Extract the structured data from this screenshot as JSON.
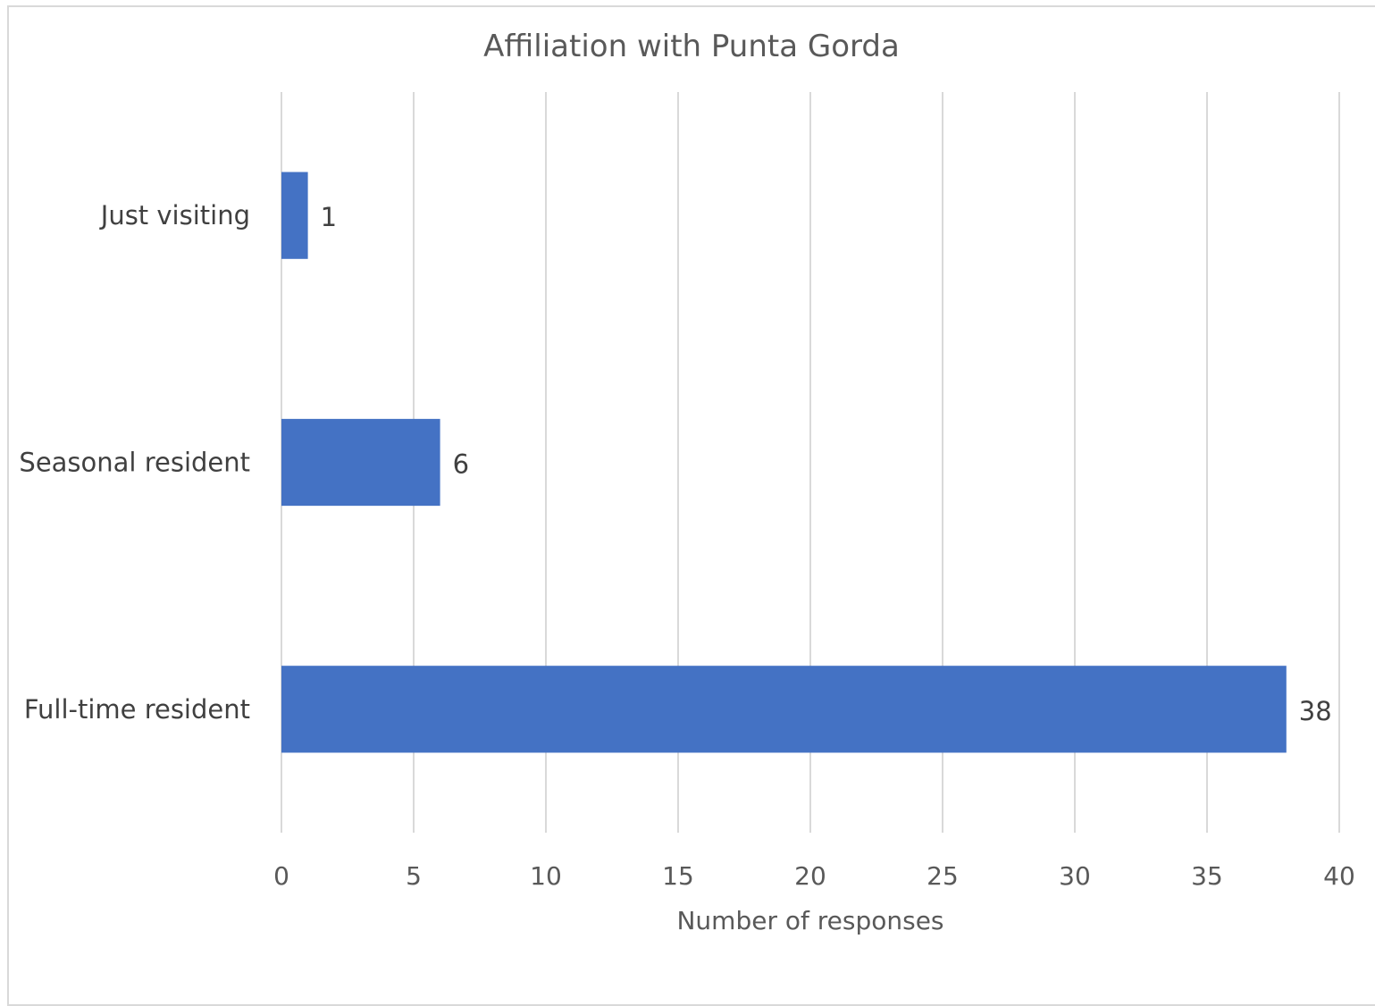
{
  "chart_data": {
    "type": "bar",
    "orientation": "horizontal",
    "title": "Affiliation with Punta Gorda",
    "xlabel": "Number of responses",
    "ylabel": "",
    "categories": [
      "Just visiting",
      "Seasonal resident",
      "Full-time resident"
    ],
    "values": [
      1,
      6,
      38
    ],
    "xlim": [
      0,
      40
    ],
    "xticks": [
      0,
      5,
      10,
      15,
      20,
      25,
      30,
      35,
      40
    ],
    "tick_labels": [
      "0",
      "5",
      "10",
      "15",
      "20",
      "25",
      "30",
      "35",
      "40"
    ],
    "data_labels": [
      "1",
      "6",
      "38"
    ],
    "grid": "vertical",
    "legend": "none",
    "colors": {
      "bar": "#4472C4",
      "grid": "#d9d9d9",
      "frame": "#d9d9d9"
    }
  }
}
